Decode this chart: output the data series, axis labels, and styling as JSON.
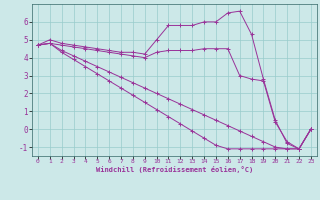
{
  "xlabel": "Windchill (Refroidissement éolien,°C)",
  "bg_color": "#cce8e8",
  "grid_color": "#99cccc",
  "line_color": "#993399",
  "spine_color": "#336666",
  "xlim": [
    -0.5,
    23.5
  ],
  "ylim": [
    -1.5,
    7.0
  ],
  "xticks": [
    0,
    1,
    2,
    3,
    4,
    5,
    6,
    7,
    8,
    9,
    10,
    11,
    12,
    13,
    14,
    15,
    16,
    17,
    18,
    19,
    20,
    21,
    22,
    23
  ],
  "yticks": [
    -1,
    0,
    1,
    2,
    3,
    4,
    5,
    6
  ],
  "series": {
    "line1": [
      4.7,
      5.0,
      4.8,
      4.7,
      4.6,
      4.5,
      4.4,
      4.3,
      4.3,
      4.2,
      5.0,
      5.8,
      5.8,
      5.8,
      6.0,
      6.0,
      6.5,
      6.6,
      5.3,
      2.8,
      0.5,
      -0.8,
      -1.1,
      0.0
    ],
    "line2": [
      4.7,
      4.8,
      4.7,
      4.6,
      4.5,
      4.4,
      4.3,
      4.2,
      4.1,
      4.0,
      4.3,
      4.4,
      4.4,
      4.4,
      4.5,
      4.5,
      4.5,
      3.0,
      2.8,
      2.7,
      0.4,
      -0.7,
      -1.1,
      0.0
    ],
    "line3": [
      4.7,
      4.8,
      4.4,
      4.1,
      3.8,
      3.5,
      3.2,
      2.9,
      2.6,
      2.3,
      2.0,
      1.7,
      1.4,
      1.1,
      0.8,
      0.5,
      0.2,
      -0.1,
      -0.4,
      -0.7,
      -1.0,
      -1.1,
      -1.1,
      0.0
    ],
    "line4": [
      4.7,
      4.8,
      4.3,
      3.9,
      3.5,
      3.1,
      2.7,
      2.3,
      1.9,
      1.5,
      1.1,
      0.7,
      0.3,
      -0.1,
      -0.5,
      -0.9,
      -1.1,
      -1.1,
      -1.1,
      -1.1,
      -1.1,
      -1.1,
      -1.1,
      0.0
    ]
  }
}
